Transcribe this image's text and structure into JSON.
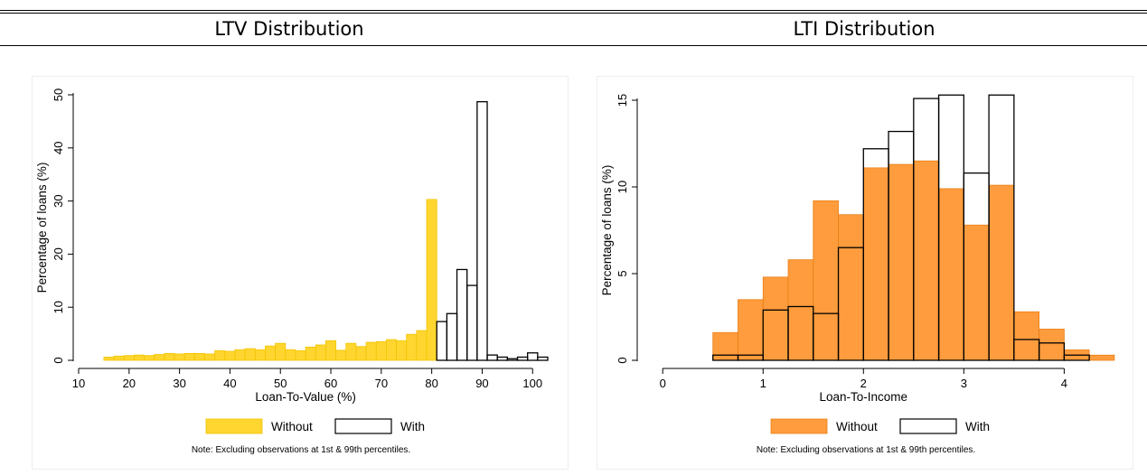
{
  "panel_titles": [
    "LTV Distribution",
    "LTI Distribution"
  ],
  "chart_data": [
    {
      "type": "bar",
      "title": "LTV Distribution",
      "xlabel": "Loan-To-Value (%)",
      "ylabel": "Percentage of loans (%)",
      "xlim": [
        10,
        103
      ],
      "ylim": [
        0,
        50
      ],
      "xticks": [
        10,
        20,
        30,
        40,
        50,
        60,
        70,
        80,
        90,
        100
      ],
      "yticks": [
        0,
        10,
        20,
        30,
        40,
        50
      ],
      "legend": {
        "placement": "bottom",
        "entries": [
          "Without",
          "With"
        ]
      },
      "note": "Note: Excluding observations at 1st & 99th percentiles.",
      "colors": {
        "Without": "#ffd630",
        "With": "#ffffff"
      },
      "series": [
        {
          "name": "Without",
          "bin_width": 2,
          "bin_starts": [
            15,
            17,
            19,
            21,
            23,
            25,
            27,
            29,
            31,
            33,
            35,
            37,
            39,
            41,
            43,
            45,
            47,
            49,
            51,
            53,
            55,
            57,
            59,
            61,
            63,
            65,
            67,
            69,
            71,
            73,
            75,
            77,
            79
          ],
          "values": [
            0.6,
            0.8,
            0.9,
            1.0,
            0.9,
            1.1,
            1.3,
            1.2,
            1.3,
            1.3,
            1.2,
            1.8,
            1.7,
            2.0,
            2.2,
            2.0,
            2.7,
            3.2,
            2.0,
            1.8,
            2.5,
            2.9,
            3.7,
            1.9,
            3.2,
            2.6,
            3.4,
            3.5,
            3.9,
            3.7,
            4.9,
            5.6,
            30.3
          ]
        },
        {
          "name": "With",
          "bin_width": 2,
          "bin_starts": [
            81,
            83,
            85,
            87,
            89,
            91,
            93,
            95,
            97,
            99,
            101
          ],
          "values": [
            7.3,
            8.8,
            17.1,
            14.1,
            48.7,
            1.0,
            0.6,
            0.3,
            0.6,
            1.4,
            0.6
          ]
        }
      ]
    },
    {
      "type": "bar",
      "title": "LTI Distribution",
      "xlabel": "Loan-To-Income",
      "ylabel": "Percentage of loans (%)",
      "xlim": [
        -0.2,
        4.6
      ],
      "ylim": [
        0,
        15
      ],
      "xticks": [
        0,
        1,
        2,
        3,
        4
      ],
      "yticks": [
        0,
        5,
        10,
        15
      ],
      "legend": {
        "placement": "bottom",
        "entries": [
          "Without",
          "With"
        ]
      },
      "note": "Note: Excluding observations at 1st & 99th percentiles.",
      "colors": {
        "Without": "#ff9c3d",
        "With": "#ffffff"
      },
      "series": [
        {
          "name": "Without",
          "bin_width": 0.25,
          "bin_starts": [
            0.5,
            0.75,
            1.0,
            1.25,
            1.5,
            1.75,
            2.0,
            2.25,
            2.5,
            2.75,
            3.0,
            3.25,
            3.5,
            3.75,
            4.0,
            4.25
          ],
          "values": [
            1.6,
            3.5,
            4.8,
            5.8,
            9.2,
            8.4,
            11.1,
            11.3,
            11.5,
            9.9,
            7.8,
            10.1,
            2.8,
            1.8,
            0.6,
            0.3
          ]
        },
        {
          "name": "With",
          "bin_width": 0.25,
          "bin_starts": [
            0.5,
            0.75,
            1.0,
            1.25,
            1.5,
            1.75,
            2.0,
            2.25,
            2.5,
            2.75,
            3.0,
            3.25,
            3.5,
            3.75,
            4.0
          ],
          "values": [
            0.3,
            0.3,
            2.9,
            3.1,
            2.7,
            6.5,
            12.2,
            13.2,
            15.1,
            15.3,
            10.8,
            15.3,
            1.2,
            1.0,
            0.3
          ]
        }
      ]
    }
  ]
}
